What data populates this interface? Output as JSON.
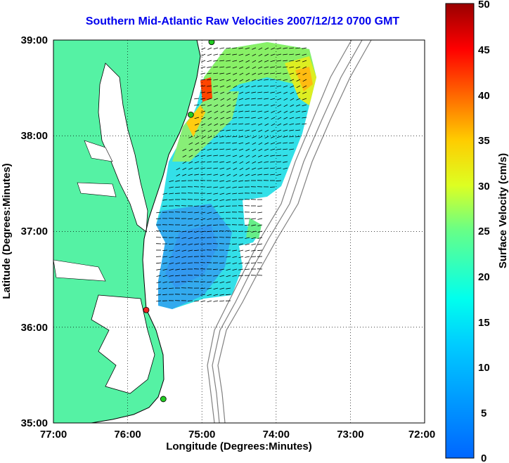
{
  "title": "Southern Mid-Atlantic Raw Velocities 2007/12/12 0700 GMT",
  "map": {
    "xlabel": "Longitude (Degrees:Minutes)",
    "ylabel": "Latitude (Degrees:Minutes)",
    "x_ticks": [
      "77:00",
      "76:00",
      "75:00",
      "74:00",
      "73:00",
      "72:00"
    ],
    "y_ticks": [
      "39:00",
      "38:00",
      "37:00",
      "36:00",
      "35:00"
    ],
    "lon_range": [
      -77,
      -72
    ],
    "lat_range": [
      35,
      39
    ],
    "land_color": "#55f2a4",
    "coastline_color": "#000000",
    "bathymetry_color": "#808080",
    "grid": "dotted",
    "station_markers": [
      {
        "lon": -74.87,
        "lat": 38.98,
        "color": "#22cc22"
      },
      {
        "lon": -75.15,
        "lat": 38.22,
        "color": "#22cc22"
      },
      {
        "lon": -75.75,
        "lat": 36.18,
        "color": "#ee2222"
      },
      {
        "lon": -75.52,
        "lat": 35.25,
        "color": "#22cc22"
      }
    ]
  },
  "colorbar": {
    "label": "Surface Velocity (cm/s)",
    "ticks": [
      "50",
      "45",
      "40",
      "35",
      "30",
      "25",
      "20",
      "15",
      "10",
      "5",
      "0"
    ],
    "range": [
      0,
      50
    ],
    "colormap": "jet"
  }
}
